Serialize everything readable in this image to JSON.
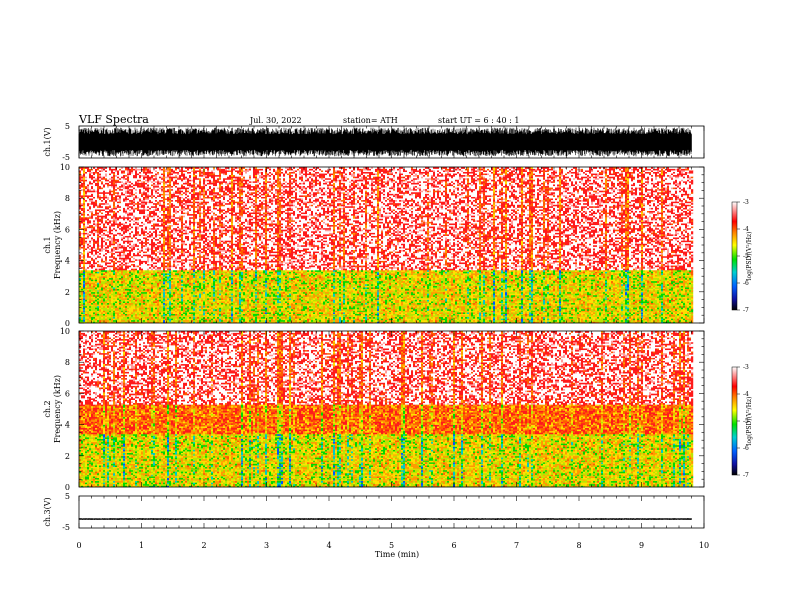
{
  "header": {
    "title": "VLF  Spectra",
    "date": "Jul.  30,  2022",
    "station": "station= ATH",
    "start": "start  UT  =   6  : 40 : 1"
  },
  "chart_data": [
    {
      "type": "line",
      "panel": "ch1-waveform",
      "ylabel": "ch.1(V)",
      "ylim": [
        -5,
        5
      ],
      "yticks": [
        "5",
        "-5"
      ],
      "xlim": [
        0,
        10
      ],
      "amplitude_range": [
        -4.5,
        4.5
      ],
      "color": "#000000"
    },
    {
      "type": "heatmap",
      "panel": "ch1-spectrogram",
      "ylabel": "ch.1\nFrequency  (kHz)",
      "xlim": [
        0,
        9.8
      ],
      "ylim": [
        0,
        10
      ],
      "yticks": [
        "0",
        "2",
        "4",
        "6",
        "8",
        "10"
      ],
      "bands": [
        {
          "from": 0,
          "to": 3.4,
          "level": -4.6
        },
        {
          "from": 3.4,
          "to": 10,
          "level": -3.3
        }
      ],
      "colorbar": {
        "label": "log(PSD)(V²/Hz)",
        "min": -7,
        "max": -3,
        "ticks": [
          "-3",
          "-4",
          "-5",
          "-6",
          "-7"
        ]
      }
    },
    {
      "type": "heatmap",
      "panel": "ch2-spectrogram",
      "ylabel": "ch.2\nFrequency  (kHz)",
      "xlim": [
        0,
        9.8
      ],
      "ylim": [
        0,
        10
      ],
      "yticks": [
        "0",
        "2",
        "4",
        "6",
        "8",
        "10"
      ],
      "bands": [
        {
          "from": 0,
          "to": 3.4,
          "level": -4.6
        },
        {
          "from": 3.4,
          "to": 5.3,
          "level": -4.0
        },
        {
          "from": 5.3,
          "to": 10,
          "level": -3.3
        }
      ],
      "colorbar": {
        "label": "log(PSD)(V²/Hz)",
        "min": -7,
        "max": -3,
        "ticks": [
          "-3",
          "-4",
          "-5",
          "-6",
          "-7"
        ]
      }
    },
    {
      "type": "line",
      "panel": "ch3-waveform",
      "ylabel": "ch.3(V)",
      "ylim": [
        -5,
        5
      ],
      "yticks": [
        "5",
        "-5"
      ],
      "xlim": [
        0,
        10
      ],
      "xlabel": "Time  (min)",
      "xticks": [
        "0",
        "1",
        "2",
        "3",
        "4",
        "5",
        "6",
        "7",
        "8",
        "9",
        "10"
      ],
      "baseline": -2.2,
      "amplitude_range": [
        -0.3,
        0.3
      ],
      "color": "#000000"
    }
  ]
}
